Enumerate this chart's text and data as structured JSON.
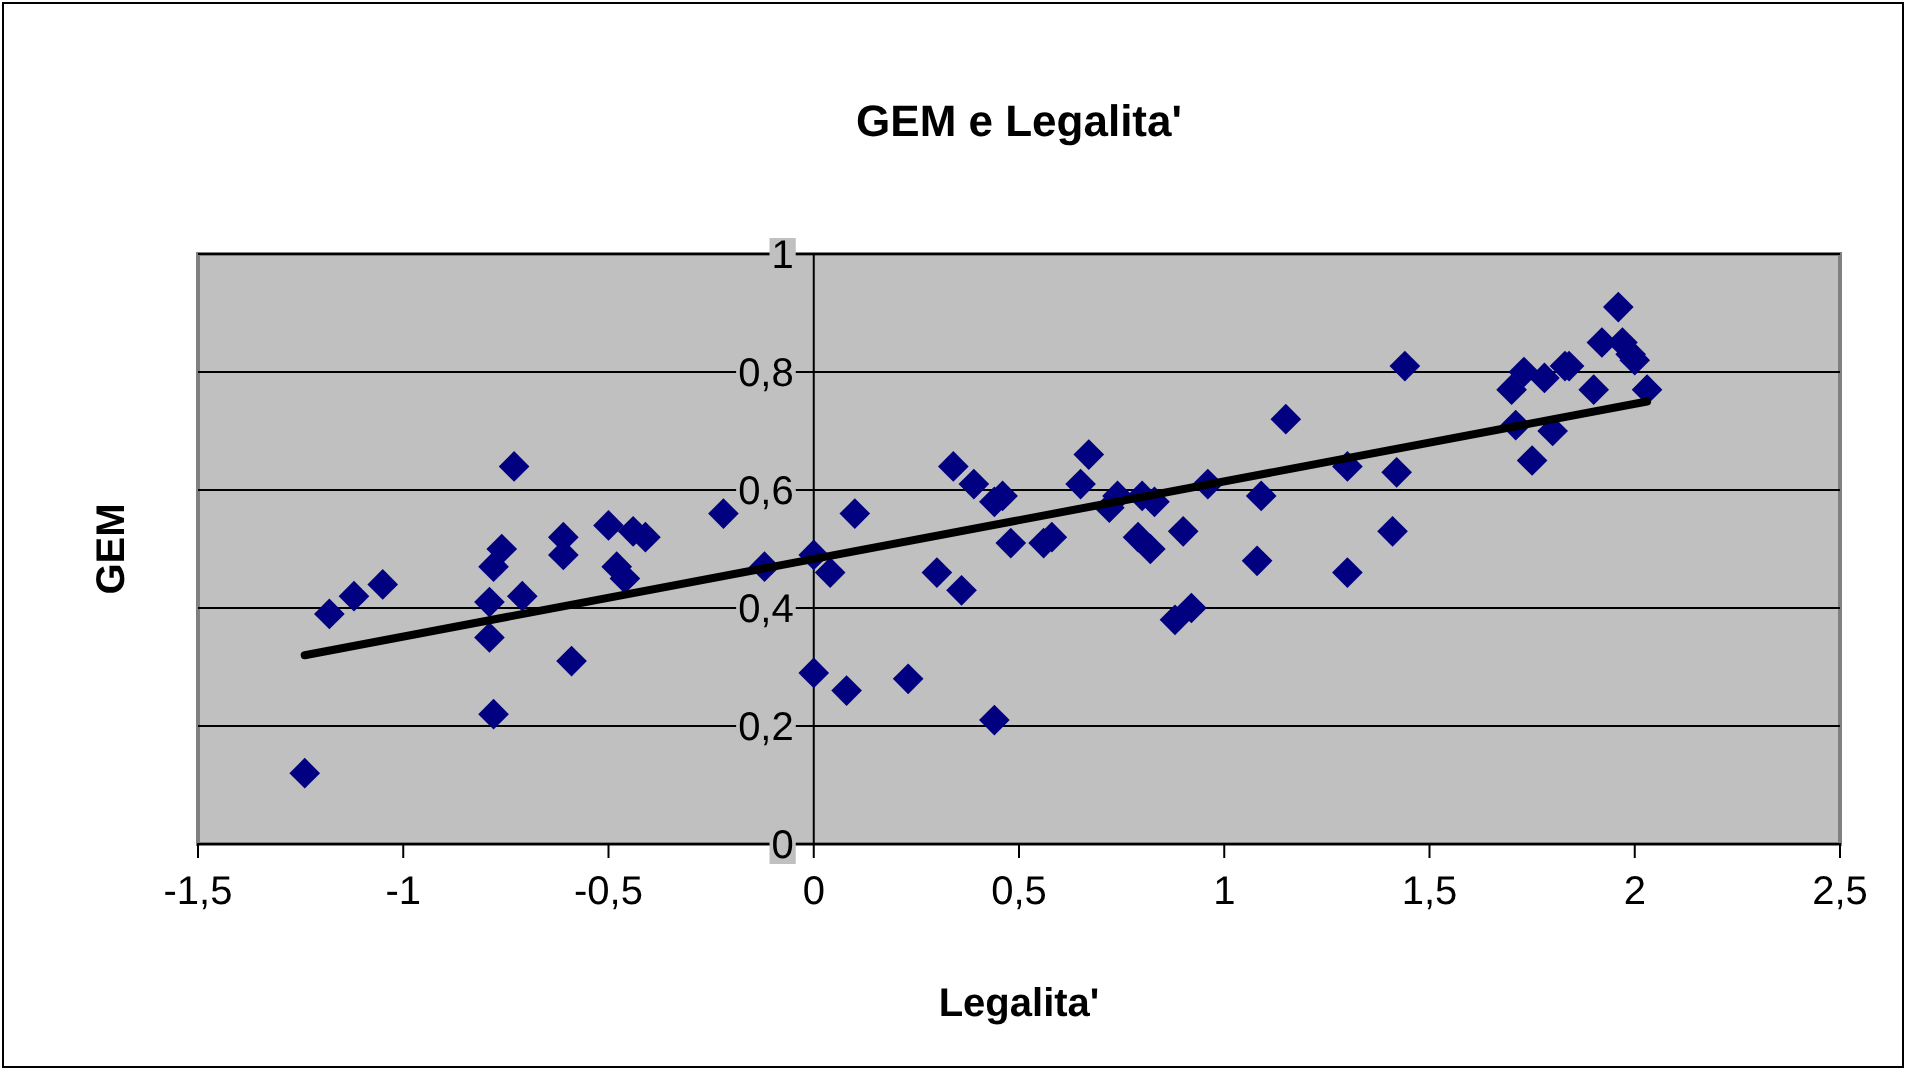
{
  "chart_data": {
    "type": "scatter",
    "title": "GEM e Legalita'",
    "xlabel": "Legalita'",
    "ylabel": "GEM",
    "xlim": [
      -1.5,
      2.5
    ],
    "xticks": [
      {
        "value": -1.5,
        "label": "-1,5"
      },
      {
        "value": -1,
        "label": "-1"
      },
      {
        "value": -0.5,
        "label": "-0,5"
      },
      {
        "value": 0,
        "label": "0"
      },
      {
        "value": 0.5,
        "label": "0,5"
      },
      {
        "value": 1,
        "label": "1"
      },
      {
        "value": 1.5,
        "label": "1,5"
      },
      {
        "value": 2,
        "label": "2"
      },
      {
        "value": 2.5,
        "label": "2,5"
      }
    ],
    "ylim": [
      0,
      1
    ],
    "yticks": [
      {
        "value": 0,
        "label": "0"
      },
      {
        "value": 0.2,
        "label": "0,2"
      },
      {
        "value": 0.4,
        "label": "0,4"
      },
      {
        "value": 0.6,
        "label": "0,6"
      },
      {
        "value": 0.8,
        "label": "0,8"
      },
      {
        "value": 1,
        "label": "1"
      }
    ],
    "grid": "y",
    "marker": "diamond",
    "series": [
      {
        "color": "#000080",
        "x": [
          -1.24,
          -1.18,
          -1.12,
          -1.05,
          -0.79,
          -0.79,
          -0.78,
          -0.76,
          -0.78,
          -0.73,
          -0.71,
          -0.61,
          -0.61,
          -0.59,
          -0.5,
          -0.48,
          -0.46,
          -0.44,
          -0.41,
          -0.22,
          -0.12,
          0,
          0,
          0.04,
          0.08,
          0.1,
          0.23,
          0.3,
          0.34,
          0.36,
          0.39,
          0.44,
          0.44,
          0.46,
          0.48,
          0.56,
          0.58,
          0.65,
          0.67,
          0.72,
          0.74,
          0.79,
          0.8,
          0.82,
          0.83,
          0.88,
          0.9,
          0.92,
          0.96,
          1.08,
          1.09,
          1.15,
          1.3,
          1.3,
          1.41,
          1.42,
          1.44,
          1.7,
          1.71,
          1.73,
          1.75,
          1.78,
          1.8,
          1.83,
          1.84,
          1.9,
          1.92,
          1.96,
          1.97,
          1.99,
          2,
          2.03
        ],
        "values": [
          0.12,
          0.39,
          0.42,
          0.44,
          0.41,
          0.35,
          0.47,
          0.5,
          0.22,
          0.64,
          0.42,
          0.52,
          0.49,
          0.31,
          0.54,
          0.47,
          0.45,
          0.53,
          0.52,
          0.56,
          0.47,
          0.49,
          0.29,
          0.46,
          0.26,
          0.56,
          0.28,
          0.46,
          0.64,
          0.43,
          0.61,
          0.21,
          0.58,
          0.59,
          0.51,
          0.51,
          0.52,
          0.61,
          0.66,
          0.57,
          0.59,
          0.52,
          0.59,
          0.5,
          0.58,
          0.38,
          0.53,
          0.4,
          0.61,
          0.48,
          0.59,
          0.72,
          0.64,
          0.46,
          0.53,
          0.63,
          0.81,
          0.77,
          0.71,
          0.8,
          0.65,
          0.79,
          0.7,
          0.81,
          0.81,
          0.77,
          0.85,
          0.91,
          0.85,
          0.83,
          0.82,
          0.77
        ]
      },
      {
        "type": "line",
        "color": "#000000",
        "x": [
          -1.24,
          2.03
        ],
        "values": [
          0.32,
          0.75
        ],
        "marker": "none",
        "line_style": "solid"
      }
    ]
  }
}
